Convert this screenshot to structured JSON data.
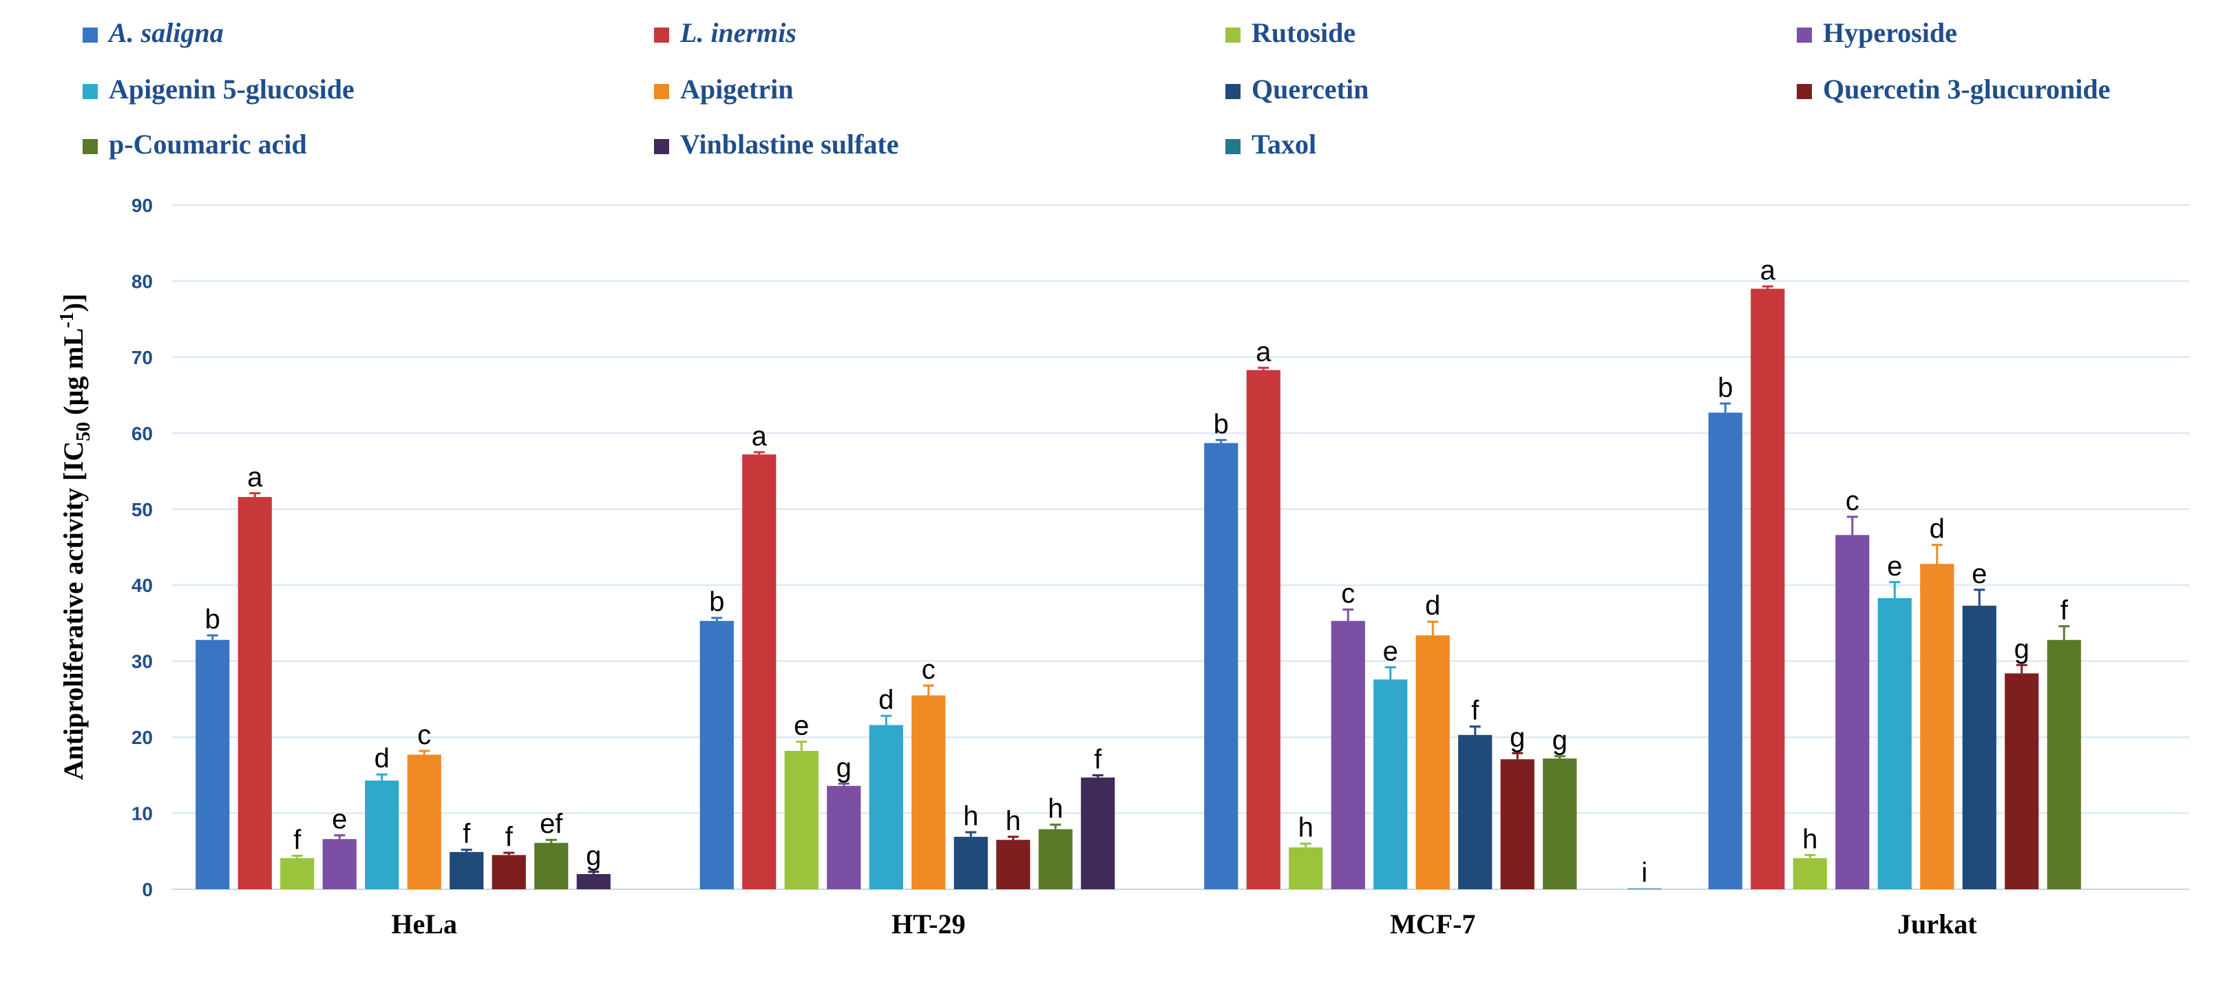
{
  "chart_data": {
    "type": "bar",
    "categories": [
      "HeLa",
      "HT-29",
      "MCF-7",
      "Jurkat"
    ],
    "ylabel_parts": [
      "Antiproliferative activity [IC",
      "50",
      " (µg mL",
      "-1",
      ")]"
    ],
    "ylim": [
      0,
      90
    ],
    "yticks": [
      0,
      10,
      20,
      30,
      40,
      50,
      60,
      70,
      80,
      90
    ],
    "grid": true,
    "legend_position": "top",
    "series": [
      {
        "name": "A. saligna",
        "italic": true,
        "color": "#3a75c4",
        "values": [
          32.8,
          35.3,
          58.7,
          62.7
        ],
        "errors": [
          0.6,
          0.4,
          0.4,
          1.2
        ],
        "letters": [
          "b",
          "b",
          "b",
          "b"
        ]
      },
      {
        "name": "L. inermis",
        "italic": true,
        "color": "#c8383a",
        "values": [
          51.6,
          57.2,
          68.3,
          79.0
        ],
        "errors": [
          0.5,
          0.3,
          0.3,
          0.3
        ],
        "letters": [
          "a",
          "a",
          "a",
          "a"
        ]
      },
      {
        "name": "Rutoside",
        "italic": false,
        "color": "#9bc33c",
        "values": [
          4.1,
          18.2,
          5.5,
          4.1
        ],
        "errors": [
          0.3,
          1.2,
          0.5,
          0.4
        ],
        "letters": [
          "f",
          "e",
          "h",
          "h"
        ]
      },
      {
        "name": "Hyperoside",
        "italic": false,
        "color": "#7b4fa3",
        "values": [
          6.6,
          13.6,
          35.3,
          46.6
        ],
        "errors": [
          0.5,
          0.3,
          1.5,
          2.4
        ],
        "letters": [
          "e",
          "g",
          "c",
          "c"
        ]
      },
      {
        "name": "Apigenin 5-glucoside",
        "italic": false,
        "color": "#2fa8cc",
        "values": [
          14.3,
          21.6,
          27.6,
          38.3
        ],
        "errors": [
          0.8,
          1.2,
          1.6,
          2.1
        ],
        "letters": [
          "d",
          "d",
          "e",
          "e"
        ]
      },
      {
        "name": "Apigetrin",
        "italic": false,
        "color": "#f08a24",
        "values": [
          17.7,
          25.5,
          33.4,
          42.8
        ],
        "errors": [
          0.5,
          1.3,
          1.8,
          2.5
        ],
        "letters": [
          "c",
          "c",
          "d",
          "d"
        ]
      },
      {
        "name": "Quercetin",
        "italic": false,
        "color": "#1f4a7a",
        "values": [
          4.9,
          6.9,
          20.3,
          37.3
        ],
        "errors": [
          0.3,
          0.6,
          1.1,
          2.1
        ],
        "letters": [
          "f",
          "h",
          "f",
          "e"
        ]
      },
      {
        "name": "Quercetin 3-glucuronide",
        "italic": false,
        "color": "#7d1f1f",
        "values": [
          4.5,
          6.5,
          17.1,
          28.4
        ],
        "errors": [
          0.3,
          0.4,
          0.8,
          1.1
        ],
        "letters": [
          "f",
          "h",
          "g",
          "g"
        ]
      },
      {
        "name": "p-Coumaric acid",
        "italic": false,
        "color": "#5a7a2a",
        "values": [
          6.1,
          7.9,
          17.2,
          32.8
        ],
        "errors": [
          0.4,
          0.6,
          0.3,
          1.8
        ],
        "letters": [
          "ef",
          "h",
          "g",
          "f"
        ]
      },
      {
        "name": "Vinblastine sulfate",
        "italic": false,
        "color": "#3f2a5a",
        "values": [
          2.0,
          14.7,
          null,
          null
        ],
        "errors": [
          0.3,
          0.3,
          null,
          null
        ],
        "letters": [
          "g",
          "f",
          null,
          null
        ]
      },
      {
        "name": "Taxol",
        "italic": false,
        "color": "#1f7a8c",
        "values": [
          null,
          null,
          0.1,
          null
        ],
        "errors": [
          null,
          null,
          null,
          null
        ],
        "letters": [
          null,
          null,
          "i",
          null
        ]
      }
    ]
  }
}
